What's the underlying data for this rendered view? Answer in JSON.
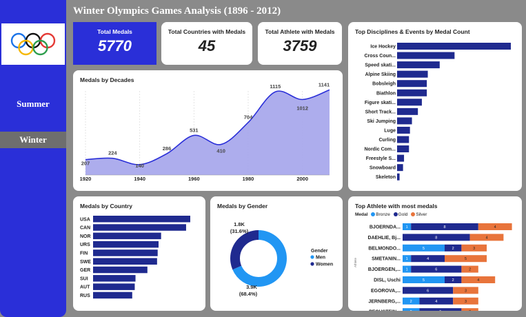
{
  "page": {
    "title": "Winter Olympics Games Analysis (1896 - 2012)"
  },
  "nav": {
    "summer": "Summer",
    "winter": "Winter"
  },
  "kpis": [
    {
      "label": "Total Medals",
      "value": "5770"
    },
    {
      "label": "Total Countries with Medals",
      "value": "45"
    },
    {
      "label": "Total Athlete with Medals",
      "value": "3759"
    }
  ],
  "colors": {
    "navy": "#1f2a8f",
    "blue": "#2a2fd8",
    "light_blue": "#2196f3",
    "orange": "#e8743b",
    "area": "#a9a9ec"
  },
  "chart_data": [
    {
      "id": "decades",
      "type": "area",
      "title": "Medals by Decades",
      "x_labels": [
        "1920",
        "1940",
        "1960",
        "1980",
        "2000"
      ],
      "points": [
        {
          "x": 1920,
          "y": 207
        },
        {
          "x": 1930,
          "y": 224
        },
        {
          "x": 1940,
          "y": 140
        },
        {
          "x": 1950,
          "y": 286
        },
        {
          "x": 1960,
          "y": 531
        },
        {
          "x": 1970,
          "y": 410
        },
        {
          "x": 1980,
          "y": 704
        },
        {
          "x": 1990,
          "y": 1115
        },
        {
          "x": 2000,
          "y": 1012
        },
        {
          "x": 2010,
          "y": 1141
        }
      ],
      "ylim": [
        0,
        1200
      ],
      "grid": false
    },
    {
      "id": "disciplines",
      "type": "bar",
      "orientation": "horizontal",
      "title": "Top Disciplines & Events by Medal Count",
      "categories": [
        "Ice Hockey",
        "Cross Coun...",
        "Speed skati...",
        "Alpine Skiing",
        "Bobsleigh",
        "Biathlon",
        "Figure skati...",
        "Short Track...",
        "Ski Jumping",
        "Luge",
        "Curling",
        "Nordic Com...",
        "Freestyle S...",
        "Snowboard",
        "Skeleton"
      ],
      "values": [
        1148,
        580,
        430,
        310,
        300,
        300,
        250,
        210,
        150,
        130,
        120,
        120,
        70,
        60,
        25
      ]
    },
    {
      "id": "country",
      "type": "bar",
      "orientation": "horizontal",
      "title": "Medals by Country",
      "categories": [
        "USA",
        "CAN",
        "NOR",
        "URS",
        "FIN",
        "SWE",
        "GER",
        "SUI",
        "AUT",
        "RUS"
      ],
      "values": [
        653,
        625,
        457,
        440,
        434,
        430,
        365,
        285,
        280,
        263
      ]
    },
    {
      "id": "gender",
      "type": "pie",
      "title": "Medals by Gender",
      "legend_title": "Gender",
      "slices": [
        {
          "name": "Men",
          "value": 3900,
          "label": "3.9K",
          "pct": "(68.4%)"
        },
        {
          "name": "Women",
          "value": 1800,
          "label": "1.8K",
          "pct": "(31.6%)"
        }
      ]
    },
    {
      "id": "athletes",
      "type": "bar",
      "orientation": "horizontal",
      "stacked": true,
      "title": "Top Athlete with most medals",
      "legend_title": "Medal",
      "y_axis_title": "Athlete",
      "series_names": [
        "Bronze",
        "Gold",
        "Silver"
      ],
      "categories": [
        "BJOERNDA...",
        "DAEHLIE, Bj...",
        "BELMONDO...",
        "SMETANIN...",
        "BJOERGEN,...",
        "DISL, Uschi",
        "EGOROVA,...",
        "JERNBERG,...",
        "PECHSTEIN..."
      ],
      "series": [
        {
          "name": "Bronze",
          "values": [
            1,
            0,
            5,
            1,
            1,
            5,
            0,
            2,
            2
          ]
        },
        {
          "name": "Gold",
          "values": [
            8,
            8,
            2,
            4,
            6,
            2,
            6,
            4,
            5
          ]
        },
        {
          "name": "Silver",
          "values": [
            4,
            4,
            3,
            5,
            2,
            4,
            3,
            3,
            2
          ]
        }
      ]
    }
  ]
}
